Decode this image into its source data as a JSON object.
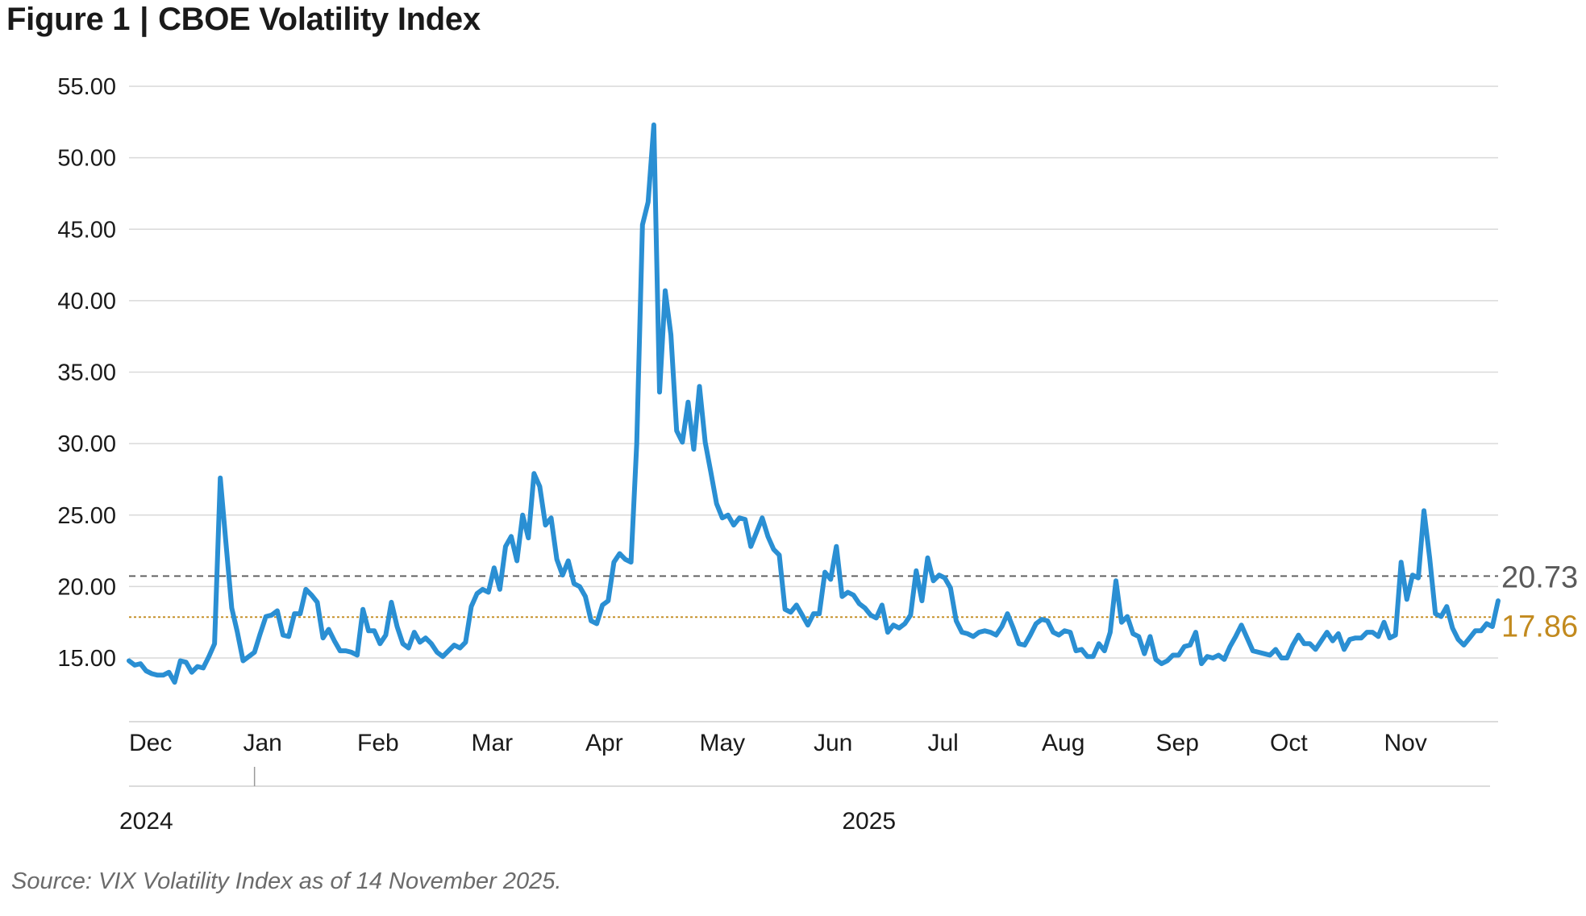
{
  "figure": {
    "label": "Figure 1",
    "separator": "|",
    "title": "CBOE Volatility Index"
  },
  "source": "Source: VIX Volatility Index as of 14 November 2025.",
  "colors": {
    "line": "#2a8fd3",
    "current_ref": "#5a5a5a",
    "avg_ref": "#c28a1e",
    "grid": "#d9d9d9",
    "axis_text": "#1a1a1a"
  },
  "chart_data": {
    "type": "line",
    "title": "CBOE Volatility Index",
    "xlabel": "",
    "ylabel": "",
    "ylim": [
      10.5,
      56
    ],
    "yticks": [
      "55.00",
      "50.00",
      "45.00",
      "40.00",
      "35.00",
      "30.00",
      "25.00",
      "20.00",
      "15.00"
    ],
    "ytick_values": [
      55,
      50,
      45,
      40,
      35,
      30,
      25,
      20,
      15
    ],
    "xlim": [
      0,
      240
    ],
    "month_labels": [
      {
        "label": "Dec",
        "x": 0
      },
      {
        "label": "Jan",
        "x": 20
      },
      {
        "label": "Feb",
        "x": 40
      },
      {
        "label": "Mar",
        "x": 60
      },
      {
        "label": "Apr",
        "x": 80
      },
      {
        "label": "May",
        "x": 100
      },
      {
        "label": "Jun",
        "x": 120
      },
      {
        "label": "Jul",
        "x": 140
      },
      {
        "label": "Aug",
        "x": 160
      },
      {
        "label": "Sep",
        "x": 180
      },
      {
        "label": "Oct",
        "x": 200
      },
      {
        "label": "Nov",
        "x": 220
      }
    ],
    "year_labels": [
      {
        "label": "2024",
        "x": 0
      },
      {
        "label": "2025",
        "x": 125
      }
    ],
    "year_divider_x": 22,
    "reference_lines": [
      {
        "value": 20.73,
        "label": "20.73",
        "style": "dashed"
      },
      {
        "value": 17.86,
        "label": "17.86",
        "style": "dotted"
      }
    ],
    "grid": true,
    "series": [
      {
        "values": [
          [
            0,
            14.8
          ],
          [
            1,
            14.5
          ],
          [
            2,
            14.6
          ],
          [
            3,
            14.1
          ],
          [
            4,
            13.9
          ],
          [
            5,
            13.8
          ],
          [
            6,
            13.8
          ],
          [
            7,
            14.0
          ],
          [
            8,
            13.3
          ],
          [
            9,
            14.8
          ],
          [
            10,
            14.7
          ],
          [
            11,
            14.0
          ],
          [
            12,
            14.4
          ],
          [
            13,
            14.3
          ],
          [
            14,
            15.1
          ],
          [
            15,
            16.0
          ],
          [
            16,
            27.6
          ],
          [
            17,
            23.0
          ],
          [
            18,
            18.5
          ],
          [
            19,
            16.8
          ],
          [
            20,
            14.8
          ],
          [
            21,
            15.1
          ],
          [
            22,
            15.4
          ],
          [
            23,
            16.7
          ],
          [
            24,
            17.9
          ],
          [
            25,
            18.0
          ],
          [
            26,
            18.3
          ],
          [
            27,
            16.6
          ],
          [
            28,
            16.5
          ],
          [
            29,
            18.1
          ],
          [
            30,
            18.1
          ],
          [
            31,
            19.8
          ],
          [
            32,
            19.4
          ],
          [
            33,
            18.9
          ],
          [
            34,
            16.4
          ],
          [
            35,
            17.0
          ],
          [
            36,
            16.2
          ],
          [
            37,
            15.5
          ],
          [
            38,
            15.5
          ],
          [
            39,
            15.4
          ],
          [
            40,
            15.2
          ],
          [
            41,
            18.4
          ],
          [
            42,
            16.9
          ],
          [
            43,
            16.9
          ],
          [
            44,
            16.0
          ],
          [
            45,
            16.6
          ],
          [
            46,
            18.9
          ],
          [
            47,
            17.2
          ],
          [
            48,
            16.0
          ],
          [
            49,
            15.7
          ],
          [
            50,
            16.8
          ],
          [
            51,
            16.1
          ],
          [
            52,
            16.4
          ],
          [
            53,
            16.0
          ],
          [
            54,
            15.4
          ],
          [
            55,
            15.1
          ],
          [
            56,
            15.5
          ],
          [
            57,
            15.9
          ],
          [
            58,
            15.7
          ],
          [
            59,
            16.1
          ],
          [
            60,
            18.6
          ],
          [
            61,
            19.5
          ],
          [
            62,
            19.8
          ],
          [
            63,
            19.6
          ],
          [
            64,
            21.3
          ],
          [
            65,
            19.8
          ],
          [
            66,
            22.8
          ],
          [
            67,
            23.5
          ],
          [
            68,
            21.8
          ],
          [
            69,
            25.0
          ],
          [
            70,
            23.4
          ],
          [
            71,
            27.9
          ],
          [
            72,
            27.0
          ],
          [
            73,
            24.3
          ],
          [
            74,
            24.8
          ],
          [
            75,
            21.9
          ],
          [
            76,
            20.8
          ],
          [
            77,
            21.8
          ],
          [
            78,
            20.2
          ],
          [
            79,
            20.0
          ],
          [
            80,
            19.3
          ],
          [
            81,
            17.6
          ],
          [
            82,
            17.4
          ],
          [
            83,
            18.7
          ],
          [
            84,
            19.0
          ],
          [
            85,
            21.7
          ],
          [
            86,
            22.3
          ],
          [
            87,
            21.9
          ],
          [
            88,
            21.7
          ],
          [
            89,
            30.0
          ],
          [
            90,
            45.3
          ],
          [
            91,
            46.9
          ],
          [
            92,
            52.3
          ],
          [
            93,
            33.6
          ],
          [
            94,
            40.7
          ],
          [
            95,
            37.6
          ],
          [
            96,
            30.9
          ],
          [
            97,
            30.1
          ],
          [
            98,
            32.9
          ],
          [
            99,
            29.6
          ],
          [
            100,
            34.0
          ],
          [
            101,
            30.1
          ],
          [
            102,
            28.0
          ],
          [
            103,
            25.8
          ],
          [
            104,
            24.8
          ],
          [
            105,
            25.0
          ],
          [
            106,
            24.3
          ],
          [
            107,
            24.8
          ],
          [
            108,
            24.7
          ],
          [
            109,
            22.8
          ],
          [
            110,
            23.8
          ],
          [
            111,
            24.8
          ],
          [
            112,
            23.5
          ],
          [
            113,
            22.6
          ],
          [
            114,
            22.2
          ],
          [
            115,
            18.4
          ],
          [
            116,
            18.2
          ],
          [
            117,
            18.7
          ],
          [
            118,
            18.0
          ],
          [
            119,
            17.3
          ],
          [
            120,
            18.1
          ],
          [
            121,
            18.1
          ],
          [
            122,
            21.0
          ],
          [
            123,
            20.5
          ],
          [
            124,
            22.8
          ],
          [
            125,
            19.3
          ],
          [
            126,
            19.6
          ],
          [
            127,
            19.4
          ],
          [
            128,
            18.8
          ],
          [
            129,
            18.5
          ],
          [
            130,
            18.0
          ],
          [
            131,
            17.8
          ],
          [
            132,
            18.7
          ],
          [
            133,
            16.8
          ],
          [
            134,
            17.3
          ],
          [
            135,
            17.1
          ],
          [
            136,
            17.4
          ],
          [
            137,
            18.0
          ],
          [
            138,
            21.1
          ],
          [
            139,
            19.0
          ],
          [
            140,
            22.0
          ],
          [
            141,
            20.4
          ],
          [
            142,
            20.8
          ],
          [
            143,
            20.6
          ],
          [
            144,
            19.9
          ],
          [
            145,
            17.6
          ],
          [
            146,
            16.8
          ],
          [
            147,
            16.7
          ],
          [
            148,
            16.5
          ],
          [
            149,
            16.8
          ],
          [
            150,
            16.9
          ],
          [
            151,
            16.8
          ],
          [
            152,
            16.6
          ],
          [
            153,
            17.2
          ],
          [
            154,
            18.1
          ],
          [
            155,
            17.1
          ],
          [
            156,
            16.0
          ],
          [
            157,
            15.9
          ],
          [
            158,
            16.6
          ],
          [
            159,
            17.4
          ],
          [
            160,
            17.7
          ],
          [
            161,
            17.6
          ],
          [
            162,
            16.8
          ],
          [
            163,
            16.6
          ],
          [
            164,
            16.9
          ],
          [
            165,
            16.8
          ],
          [
            166,
            15.5
          ],
          [
            167,
            15.6
          ],
          [
            168,
            15.1
          ],
          [
            169,
            15.1
          ],
          [
            170,
            16.0
          ],
          [
            171,
            15.5
          ],
          [
            172,
            16.8
          ],
          [
            173,
            20.4
          ],
          [
            174,
            17.5
          ],
          [
            175,
            17.9
          ],
          [
            176,
            16.7
          ],
          [
            177,
            16.5
          ],
          [
            178,
            15.3
          ],
          [
            179,
            16.5
          ],
          [
            180,
            14.9
          ],
          [
            181,
            14.6
          ],
          [
            182,
            14.8
          ],
          [
            183,
            15.2
          ],
          [
            184,
            15.2
          ],
          [
            185,
            15.8
          ],
          [
            186,
            15.9
          ],
          [
            187,
            16.8
          ],
          [
            188,
            14.6
          ],
          [
            189,
            15.1
          ],
          [
            190,
            15.0
          ],
          [
            191,
            15.2
          ],
          [
            192,
            14.9
          ],
          [
            193,
            15.8
          ],
          [
            194,
            16.5
          ],
          [
            195,
            17.3
          ],
          [
            196,
            16.4
          ],
          [
            197,
            15.5
          ],
          [
            198,
            15.4
          ],
          [
            199,
            15.3
          ],
          [
            200,
            15.2
          ],
          [
            201,
            15.6
          ],
          [
            202,
            15.0
          ],
          [
            203,
            15.0
          ],
          [
            204,
            15.9
          ],
          [
            205,
            16.6
          ],
          [
            206,
            16.0
          ],
          [
            207,
            16.0
          ],
          [
            208,
            15.6
          ],
          [
            209,
            16.2
          ],
          [
            210,
            16.8
          ],
          [
            211,
            16.2
          ],
          [
            212,
            16.7
          ],
          [
            213,
            15.6
          ],
          [
            214,
            16.3
          ],
          [
            215,
            16.4
          ],
          [
            216,
            16.4
          ],
          [
            217,
            16.8
          ],
          [
            218,
            16.8
          ],
          [
            219,
            16.5
          ],
          [
            220,
            17.5
          ],
          [
            221,
            16.4
          ],
          [
            222,
            16.6
          ],
          [
            223,
            21.7
          ],
          [
            224,
            19.1
          ],
          [
            225,
            20.8
          ],
          [
            226,
            20.6
          ],
          [
            227,
            25.3
          ],
          [
            228,
            22.0
          ],
          [
            229,
            18.1
          ],
          [
            230,
            17.9
          ],
          [
            231,
            18.6
          ],
          [
            232,
            17.1
          ],
          [
            233,
            16.3
          ],
          [
            234,
            15.9
          ],
          [
            235,
            16.4
          ],
          [
            236,
            16.9
          ],
          [
            237,
            16.9
          ],
          [
            238,
            17.4
          ],
          [
            239,
            17.2
          ],
          [
            240,
            19.0
          ]
        ]
      }
    ]
  }
}
